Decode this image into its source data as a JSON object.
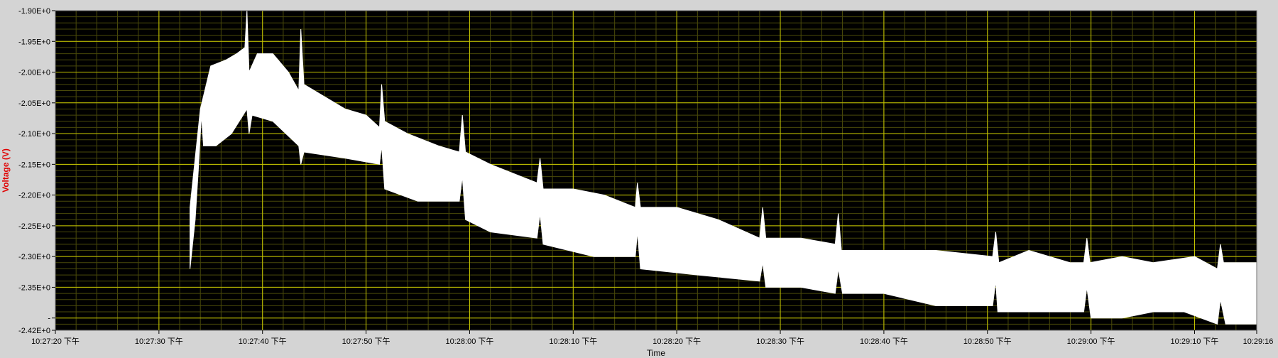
{
  "chart_data": {
    "type": "area",
    "ylabel": "Voltage (V)",
    "xlabel": "Time",
    "ylim": [
      -2.42,
      -1.9
    ],
    "yticks": [
      "-1.90E+0",
      "-1.95E+0",
      "-2.00E+0",
      "-2.05E+0",
      "-2.10E+0",
      "-2.15E+0",
      "-2.20E+0",
      "-2.25E+0",
      "-2.30E+0",
      "-2.35E+0",
      "-",
      "-2.42E+0"
    ],
    "xrange": [
      "10:27:20",
      "10:29:16"
    ],
    "xticks": [
      {
        "time": "10:27:20",
        "label": "10:27:20 下午"
      },
      {
        "time": "10:27:30",
        "label": "10:27:30 下午"
      },
      {
        "time": "10:27:40",
        "label": "10:27:40 下午"
      },
      {
        "time": "10:27:50",
        "label": "10:27:50 下午"
      },
      {
        "time": "10:28:00",
        "label": "10:28:00 下午"
      },
      {
        "time": "10:28:10",
        "label": "10:28:10 下午"
      },
      {
        "time": "10:28:20",
        "label": "10:28:20 下午"
      },
      {
        "time": "10:28:30",
        "label": "10:28:30 下午"
      },
      {
        "time": "10:28:40",
        "label": "10:28:40 下午"
      },
      {
        "time": "10:28:50",
        "label": "10:28:50 下午"
      },
      {
        "time": "10:29:00",
        "label": "10:29:00 下午"
      },
      {
        "time": "10:29:10",
        "label": "10:29:10 下午"
      },
      {
        "time": "10:29:16",
        "label": "10:29:16"
      }
    ],
    "grid": true,
    "series": [
      {
        "color": "#ffffff",
        "upper": [
          [
            "10:27:33.0",
            -2.22
          ],
          [
            "10:27:34.0",
            -2.06
          ],
          [
            "10:27:35.0",
            -1.99
          ],
          [
            "10:27:36.5",
            -1.98
          ],
          [
            "10:27:37.5",
            -1.97
          ],
          [
            "10:27:38.3",
            -1.96
          ],
          [
            "10:27:38.5",
            -1.9
          ],
          [
            "10:27:38.7",
            -2.0
          ],
          [
            "10:27:39.5",
            -1.97
          ],
          [
            "10:27:41.0",
            -1.97
          ],
          [
            "10:27:42.5",
            -2.0
          ],
          [
            "10:27:43.5",
            -2.03
          ],
          [
            "10:27:43.7",
            -1.93
          ],
          [
            "10:27:44.0",
            -2.02
          ],
          [
            "10:27:46.0",
            -2.04
          ],
          [
            "10:27:48.0",
            -2.06
          ],
          [
            "10:27:50.0",
            -2.07
          ],
          [
            "10:27:51.3",
            -2.09
          ],
          [
            "10:27:51.5",
            -2.02
          ],
          [
            "10:27:51.8",
            -2.08
          ],
          [
            "10:27:54.0",
            -2.1
          ],
          [
            "10:27:57.0",
            -2.12
          ],
          [
            "10:27:59.0",
            -2.13
          ],
          [
            "10:27:59.3",
            -2.07
          ],
          [
            "10:27:59.6",
            -2.13
          ],
          [
            "10:28:02.0",
            -2.15
          ],
          [
            "10:28:05.0",
            -2.17
          ],
          [
            "10:28:06.5",
            -2.18
          ],
          [
            "10:28:06.8",
            -2.14
          ],
          [
            "10:28:07.1",
            -2.19
          ],
          [
            "10:28:10.0",
            -2.19
          ],
          [
            "10:28:13.0",
            -2.2
          ],
          [
            "10:28:16.0",
            -2.22
          ],
          [
            "10:28:16.2",
            -2.18
          ],
          [
            "10:28:16.5",
            -2.22
          ],
          [
            "10:28:20.0",
            -2.22
          ],
          [
            "10:28:24.0",
            -2.24
          ],
          [
            "10:28:28.0",
            -2.27
          ],
          [
            "10:28:28.3",
            -2.22
          ],
          [
            "10:28:28.6",
            -2.27
          ],
          [
            "10:28:32.0",
            -2.27
          ],
          [
            "10:28:35.3",
            -2.28
          ],
          [
            "10:28:35.6",
            -2.23
          ],
          [
            "10:28:35.9",
            -2.29
          ],
          [
            "10:28:40.0",
            -2.29
          ],
          [
            "10:28:45.0",
            -2.29
          ],
          [
            "10:28:50.5",
            -2.3
          ],
          [
            "10:28:50.8",
            -2.26
          ],
          [
            "10:28:51.1",
            -2.31
          ],
          [
            "10:28:54.0",
            -2.29
          ],
          [
            "10:28:58.0",
            -2.31
          ],
          [
            "10:28:59.3",
            -2.31
          ],
          [
            "10:28:59.6",
            -2.27
          ],
          [
            "10:28:59.9",
            -2.31
          ],
          [
            "10:29:03.0",
            -2.3
          ],
          [
            "10:29:06.0",
            -2.31
          ],
          [
            "10:29:10.0",
            -2.3
          ],
          [
            "10:29:12.2",
            -2.32
          ],
          [
            "10:29:12.5",
            -2.28
          ],
          [
            "10:29:12.8",
            -2.31
          ],
          [
            "10:29:16.0",
            -2.31
          ]
        ],
        "lower": [
          [
            "10:29:16.0",
            -2.41
          ],
          [
            "10:29:13.0",
            -2.41
          ],
          [
            "10:29:12.5",
            -2.37
          ],
          [
            "10:29:12.2",
            -2.41
          ],
          [
            "10:29:09.0",
            -2.39
          ],
          [
            "10:29:06.0",
            -2.39
          ],
          [
            "10:29:03.0",
            -2.4
          ],
          [
            "10:29:00.0",
            -2.4
          ],
          [
            "10:28:59.6",
            -2.35
          ],
          [
            "10:28:59.3",
            -2.39
          ],
          [
            "10:28:55.0",
            -2.39
          ],
          [
            "10:28:51.0",
            -2.39
          ],
          [
            "10:28:50.8",
            -2.34
          ],
          [
            "10:28:50.5",
            -2.38
          ],
          [
            "10:28:45.0",
            -2.38
          ],
          [
            "10:28:40.0",
            -2.36
          ],
          [
            "10:28:36.0",
            -2.36
          ],
          [
            "10:28:35.6",
            -2.32
          ],
          [
            "10:28:35.3",
            -2.36
          ],
          [
            "10:28:32.0",
            -2.35
          ],
          [
            "10:28:28.6",
            -2.35
          ],
          [
            "10:28:28.3",
            -2.31
          ],
          [
            "10:28:28.0",
            -2.34
          ],
          [
            "10:28:22.0",
            -2.33
          ],
          [
            "10:28:16.5",
            -2.32
          ],
          [
            "10:28:16.2",
            -2.26
          ],
          [
            "10:28:16.0",
            -2.3
          ],
          [
            "10:28:12.0",
            -2.3
          ],
          [
            "10:28:07.1",
            -2.28
          ],
          [
            "10:28:06.8",
            -2.23
          ],
          [
            "10:28:06.5",
            -2.27
          ],
          [
            "10:28:02.0",
            -2.26
          ],
          [
            "10:27:59.6",
            -2.24
          ],
          [
            "10:27:59.3",
            -2.17
          ],
          [
            "10:27:59.0",
            -2.21
          ],
          [
            "10:27:55.0",
            -2.21
          ],
          [
            "10:27:51.8",
            -2.19
          ],
          [
            "10:27:51.5",
            -2.12
          ],
          [
            "10:27:51.3",
            -2.15
          ],
          [
            "10:27:48.0",
            -2.14
          ],
          [
            "10:27:44.0",
            -2.13
          ],
          [
            "10:27:43.7",
            -2.15
          ],
          [
            "10:27:43.5",
            -2.12
          ],
          [
            "10:27:41.0",
            -2.08
          ],
          [
            "10:27:39.0",
            -2.07
          ],
          [
            "10:27:38.7",
            -2.1
          ],
          [
            "10:27:38.5",
            -2.06
          ],
          [
            "10:27:37.0",
            -2.1
          ],
          [
            "10:27:35.5",
            -2.12
          ],
          [
            "10:27:34.3",
            -2.12
          ],
          [
            "10:27:34.1",
            -2.07
          ],
          [
            "10:27:33.8",
            -2.16
          ],
          [
            "10:27:33.5",
            -2.24
          ],
          [
            "10:27:33.0",
            -2.32
          ]
        ]
      }
    ],
    "colors": {
      "plot_background": "#000000",
      "major_grid": "#c8c800",
      "minor_grid": "#4a4a0a",
      "frame": "#d4d4d4",
      "ylabel_color": "#e00000",
      "trace": "#ffffff"
    }
  }
}
